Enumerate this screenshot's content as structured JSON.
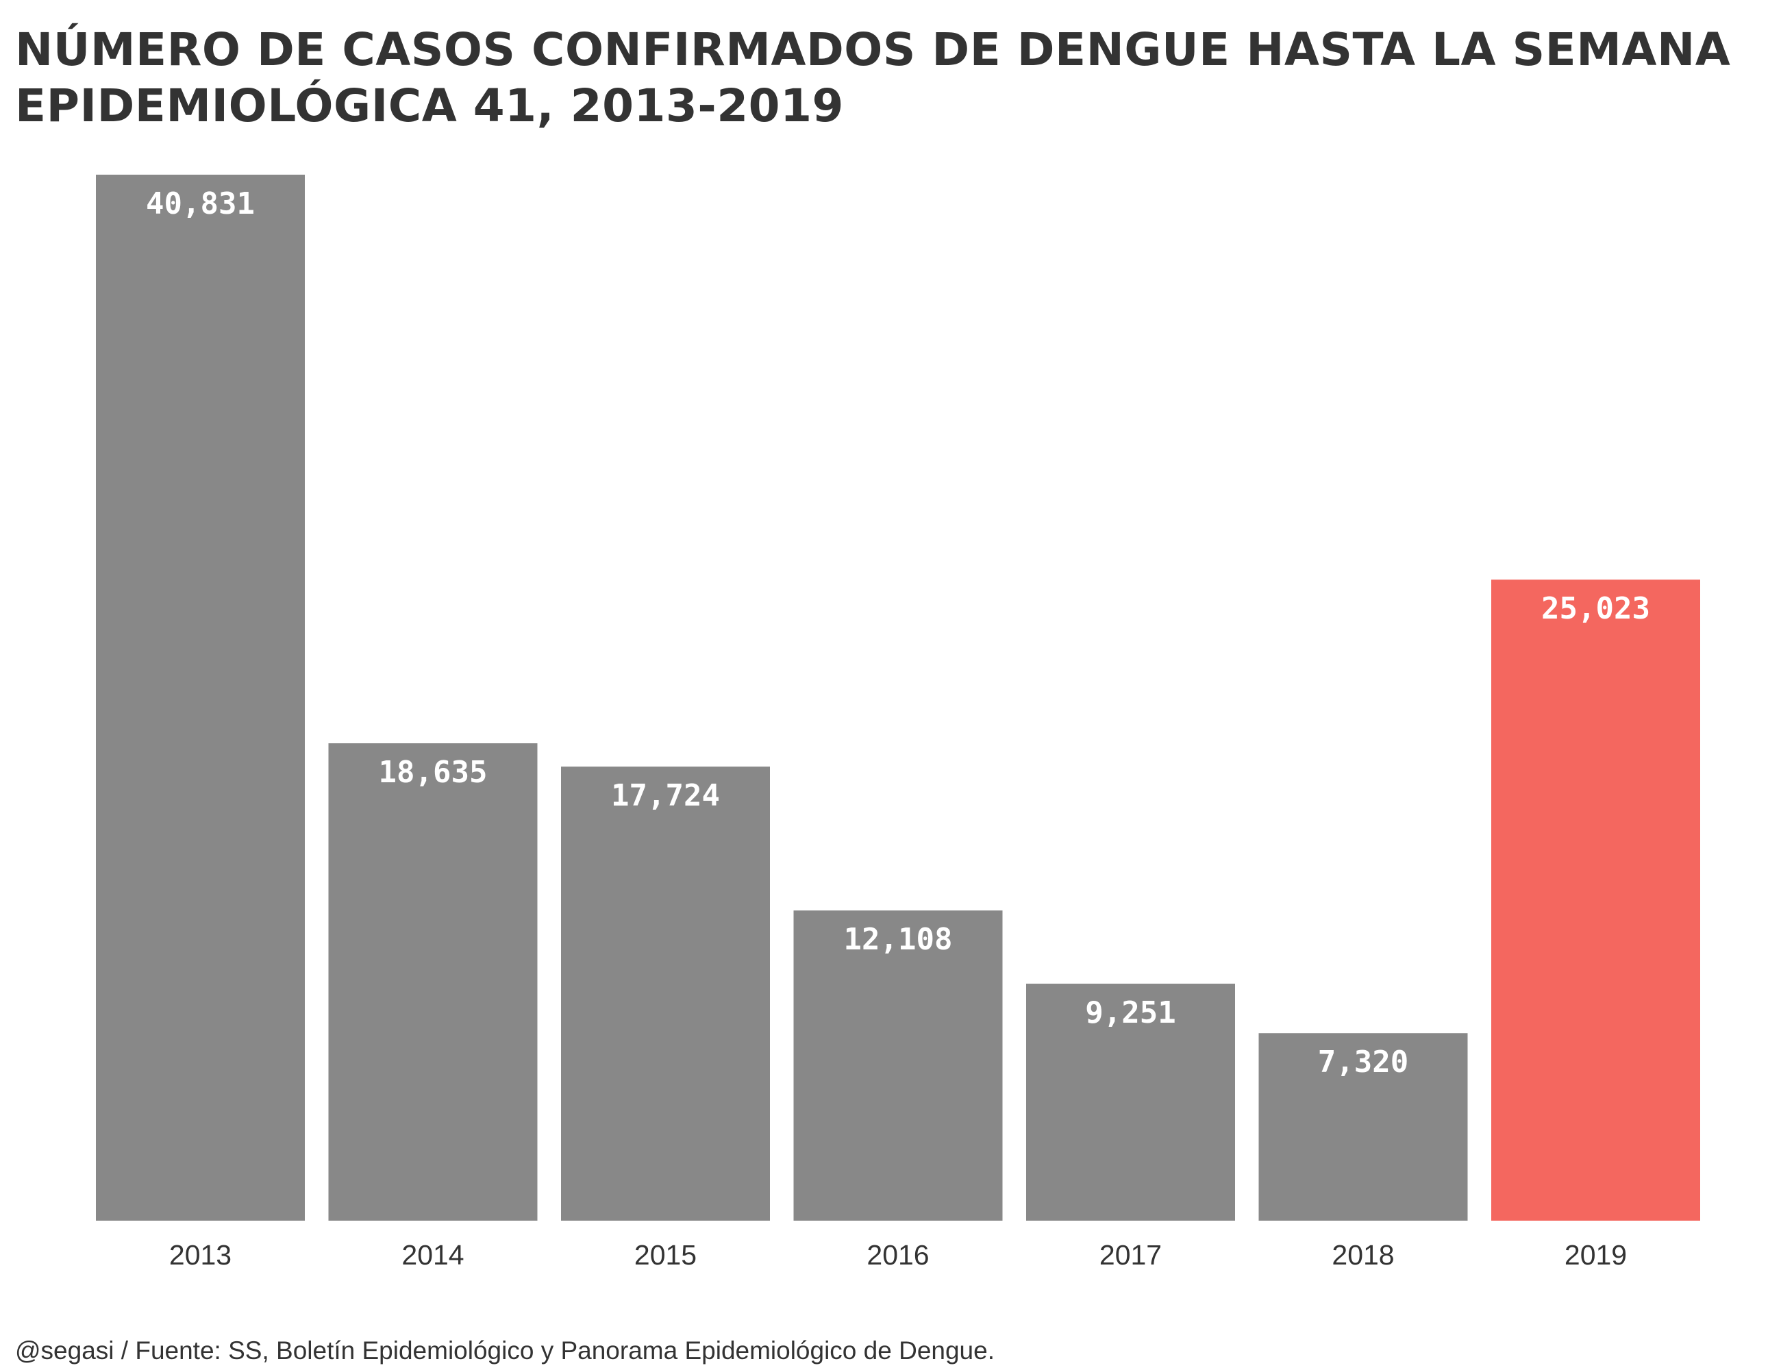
{
  "chart_data": {
    "type": "bar",
    "title": "NÚMERO DE CASOS CONFIRMADOS DE DENGUE HASTA LA SEMANA EPIDEMIOLÓGICA 41, 2013-2019",
    "categories": [
      "2013",
      "2014",
      "2015",
      "2016",
      "2017",
      "2018",
      "2019"
    ],
    "values": [
      40831,
      18635,
      17724,
      12108,
      9251,
      7320,
      25023
    ],
    "value_labels": [
      "40,831",
      "18,635",
      "17,724",
      "12,108",
      "9,251",
      "7,320",
      "25,023"
    ],
    "highlight_category": "2019",
    "colors": {
      "default_bar": "#888888",
      "highlight_bar": "#F4675F",
      "bar_label": "#FFFFFF",
      "text": "#333333"
    },
    "xlabel": "",
    "ylabel": "",
    "ylim": [
      0,
      40831
    ],
    "grid": false,
    "legend": "none"
  },
  "caption": "@segasi / Fuente: SS, Boletín Epidemiológico y Panorama Epidemiológico de Dengue."
}
